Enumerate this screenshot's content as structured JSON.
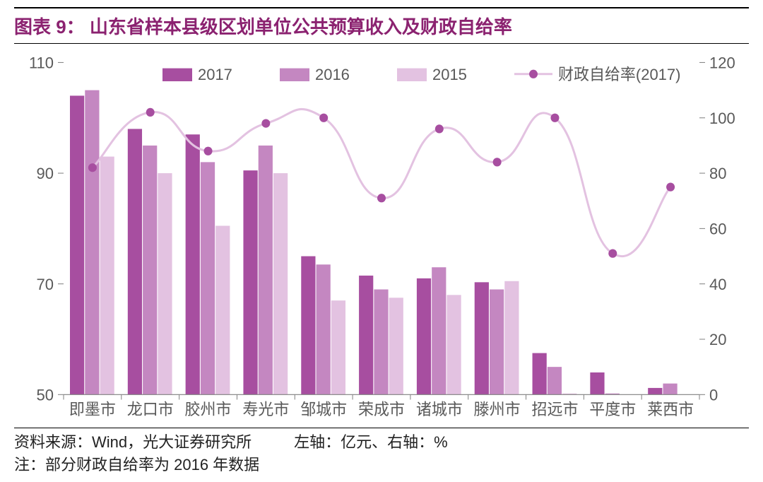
{
  "title": "图表 9：  山东省样本县级区划单位公共预算收入及财政自给率",
  "source_label": "资料来源：Wind，光大证券研究所",
  "axis_note": "左轴：亿元、右轴：%",
  "footnote": "注：部分财政自给率为 2016 年数据",
  "chart": {
    "type": "bar+line",
    "categories": [
      "即墨市",
      "龙口市",
      "胶州市",
      "寿光市",
      "邹城市",
      "荣成市",
      "诸城市",
      "滕州市",
      "招远市",
      "平度市",
      "莱西市"
    ],
    "series_bars": [
      {
        "name": "2017",
        "color": "#a74ea0",
        "values": [
          104,
          98,
          97,
          90.5,
          75,
          71.5,
          71,
          70.3,
          57.5,
          54,
          51.2
        ]
      },
      {
        "name": "2016",
        "color": "#c487c1",
        "values": [
          105,
          95,
          92,
          95,
          73.5,
          69,
          73,
          69,
          55,
          50.2,
          52
        ]
      },
      {
        "name": "2015",
        "color": "#e3c2e1",
        "values": [
          93,
          90,
          80.5,
          90,
          67,
          67.5,
          68,
          70.5,
          50.2,
          50,
          50
        ]
      }
    ],
    "series_line": {
      "name": "财政自给率(2017)",
      "color": "#a74ea0",
      "line_color": "#e3c2e1",
      "values": [
        82,
        102,
        88,
        98,
        100,
        71,
        96,
        84,
        100,
        51,
        75
      ]
    },
    "left_axis": {
      "min": 50,
      "max": 110,
      "ticks": [
        50,
        70,
        90,
        110
      ],
      "fontsize": 22,
      "color": "#595959"
    },
    "right_axis": {
      "min": 0,
      "max": 120,
      "ticks": [
        0,
        20,
        40,
        60,
        80,
        100,
        120
      ],
      "fontsize": 22,
      "color": "#595959"
    },
    "legend": {
      "fontsize": 22,
      "color": "#595959",
      "items": [
        {
          "type": "box",
          "label": "2017",
          "fill": "#a74ea0"
        },
        {
          "type": "box",
          "label": "2016",
          "fill": "#c487c1"
        },
        {
          "type": "box",
          "label": "2015",
          "fill": "#e3c2e1"
        },
        {
          "type": "marker",
          "label": "财政自给率(2017)",
          "stroke": "#e3c2e1",
          "marker": "#a74ea0"
        }
      ]
    },
    "background_color": "#ffffff",
    "grid_color": "#e6e6e6",
    "tick_mark_color": "#808080",
    "bar_group_width": 0.78,
    "line_width": 3,
    "marker_radius": 6,
    "category_fontsize": 22
  }
}
